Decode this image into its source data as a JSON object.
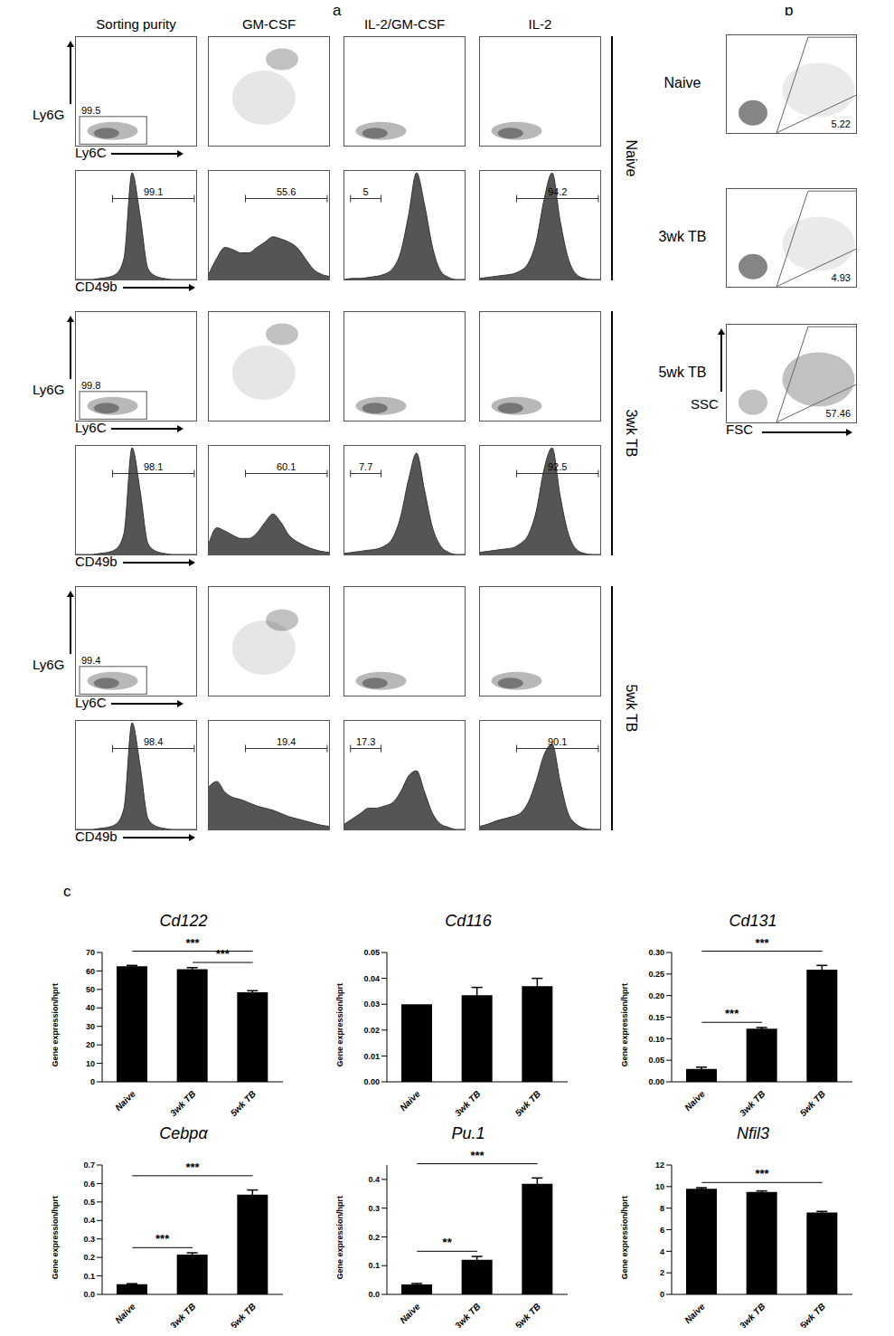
{
  "panel_labels": [
    "a",
    "b",
    "c"
  ],
  "a": {
    "columns": [
      "Sorting purity",
      "GM-CSF",
      "IL-2/GM-CSF",
      "IL-2"
    ],
    "dot_x_label": "Ly6C",
    "dot_y_label": "Ly6G",
    "hist_x_label": "CD49b",
    "hist_ylim": [
      0,
      100
    ],
    "rows": [
      {
        "group": "Naive",
        "purity": 99.5,
        "histograms": [
          {
            "gate": 99.1,
            "side": "right",
            "counts": [
              0,
              0,
              0,
              1,
              2,
              5,
              20,
              100,
              60,
              10,
              3,
              1,
              0,
              0,
              0,
              0
            ]
          },
          {
            "gate": 55.6,
            "side": "right",
            "counts": [
              5,
              20,
              30,
              28,
              25,
              25,
              30,
              35,
              40,
              38,
              35,
              30,
              20,
              10,
              5,
              3
            ]
          },
          {
            "gate": 5,
            "side": "left",
            "counts": [
              0,
              1,
              1,
              2,
              3,
              5,
              10,
              25,
              60,
              100,
              70,
              30,
              8,
              2,
              0,
              0
            ]
          },
          {
            "gate": 94.2,
            "side": "right",
            "counts": [
              1,
              2,
              3,
              4,
              5,
              8,
              15,
              35,
              75,
              100,
              55,
              20,
              5,
              1,
              0,
              0
            ]
          }
        ]
      },
      {
        "group": "3wk TB",
        "purity": 99.8,
        "histograms": [
          {
            "gate": 98.1,
            "side": "right",
            "counts": [
              0,
              0,
              0,
              1,
              2,
              5,
              20,
              100,
              60,
              10,
              3,
              1,
              0,
              0,
              0,
              0
            ]
          },
          {
            "gate": 60.1,
            "side": "right",
            "counts": [
              10,
              25,
              22,
              18,
              15,
              15,
              20,
              30,
              38,
              30,
              18,
              12,
              8,
              5,
              3,
              2
            ]
          },
          {
            "gate": 7.7,
            "side": "left",
            "counts": [
              1,
              2,
              3,
              4,
              5,
              8,
              15,
              35,
              70,
              95,
              60,
              25,
              8,
              2,
              0,
              0
            ]
          },
          {
            "gate": 92.5,
            "side": "right",
            "counts": [
              2,
              3,
              4,
              5,
              6,
              10,
              18,
              40,
              80,
              100,
              55,
              20,
              5,
              1,
              0,
              0
            ]
          }
        ]
      },
      {
        "group": "5wk TB",
        "purity": 99.4,
        "histograms": [
          {
            "gate": 98.4,
            "side": "right",
            "counts": [
              0,
              0,
              0,
              1,
              2,
              5,
              20,
              100,
              60,
              10,
              3,
              1,
              0,
              0,
              0,
              0
            ]
          },
          {
            "gate": 19.4,
            "side": "right",
            "counts": [
              40,
              45,
              35,
              30,
              28,
              25,
              22,
              20,
              18,
              15,
              12,
              10,
              8,
              6,
              4,
              3
            ]
          },
          {
            "gate": 17.3,
            "side": "left",
            "counts": [
              5,
              10,
              15,
              20,
              20,
              22,
              25,
              35,
              50,
              55,
              35,
              15,
              5,
              2,
              0,
              0
            ]
          },
          {
            "gate": 90.1,
            "side": "right",
            "counts": [
              3,
              5,
              8,
              10,
              12,
              15,
              25,
              45,
              70,
              80,
              45,
              15,
              5,
              1,
              0,
              0
            ]
          }
        ]
      }
    ]
  },
  "b": {
    "groups": [
      "Naive",
      "3wk TB",
      "5wk TB"
    ],
    "gates": [
      5.22,
      4.93,
      57.46
    ],
    "x_label": "FSC",
    "y_label": "SSC"
  },
  "chart_data": [
    {
      "type": "bar",
      "title": "Cd122",
      "ylabel": "Gene expression/hprt",
      "categories": [
        "Naive",
        "3wk TB",
        "5wk TB"
      ],
      "values": [
        62.5,
        61,
        48.5
      ],
      "errors": [
        0.5,
        0.8,
        0.8
      ],
      "color": "#000000",
      "ylim": [
        0,
        70
      ],
      "yticks": [
        0,
        10,
        20,
        30,
        40,
        50,
        60,
        70
      ],
      "significance": [
        {
          "from": 1,
          "to": 2,
          "label": "***"
        },
        {
          "from": 0,
          "to": 2,
          "label": "***"
        }
      ]
    },
    {
      "type": "bar",
      "title": "Cd116",
      "ylabel": "Gene expression/hprt",
      "categories": [
        "Naive",
        "3wk TB",
        "5wk TB"
      ],
      "values": [
        0.03,
        0.0335,
        0.037
      ],
      "errors": [
        0,
        0.003,
        0.003
      ],
      "color": "#000000",
      "ylim": [
        0,
        0.05
      ],
      "yticks": [
        {
          "value": 0,
          "label": "0.00"
        },
        {
          "value": 0.01,
          "label": "0.01"
        },
        {
          "value": 0.02,
          "label": "0.02"
        },
        {
          "value": 0.03,
          "label": "0.03"
        },
        {
          "value": 0.04,
          "label": "0.04"
        },
        {
          "value": 0.05,
          "label": "0.05"
        }
      ],
      "significance": []
    },
    {
      "type": "bar",
      "title": "Cd131",
      "ylabel": "Gene expression/hprt",
      "categories": [
        "Naive",
        "3wk TB",
        "5wk TB"
      ],
      "values": [
        0.03,
        0.123,
        0.26
      ],
      "errors": [
        0.004,
        0.003,
        0.01
      ],
      "color": "#000000",
      "ylim": [
        0,
        0.3
      ],
      "yticks": [
        {
          "value": 0,
          "label": "0.00"
        },
        {
          "value": 0.05,
          "label": "0.05"
        },
        {
          "value": 0.1,
          "label": "0.10"
        },
        {
          "value": 0.15,
          "label": "0.15"
        },
        {
          "value": 0.2,
          "label": "0.20"
        },
        {
          "value": 0.25,
          "label": "0.25"
        },
        {
          "value": 0.3,
          "label": "0.30"
        }
      ],
      "significance": [
        {
          "from": 0,
          "to": 1,
          "label": "***"
        },
        {
          "from": 0,
          "to": 2,
          "label": "***"
        }
      ]
    },
    {
      "type": "bar",
      "title": "Cebpα",
      "ylabel": "Gene expression/hprt",
      "categories": [
        "Naive",
        "3wk TB",
        "5wk TB"
      ],
      "values": [
        0.055,
        0.215,
        0.54
      ],
      "errors": [
        0.003,
        0.01,
        0.025
      ],
      "color": "#000000",
      "ylim": [
        0,
        0.7
      ],
      "yticks": [
        {
          "value": 0,
          "label": "0.0"
        },
        {
          "value": 0.1,
          "label": "0.1"
        },
        {
          "value": 0.2,
          "label": "0.2"
        },
        {
          "value": 0.3,
          "label": "0.3"
        },
        {
          "value": 0.4,
          "label": "0.4"
        },
        {
          "value": 0.5,
          "label": "0.5"
        },
        {
          "value": 0.6,
          "label": "0.6"
        },
        {
          "value": 0.7,
          "label": "0.7"
        }
      ],
      "significance": [
        {
          "from": 0,
          "to": 1,
          "label": "***"
        },
        {
          "from": 0,
          "to": 2,
          "label": "***"
        }
      ]
    },
    {
      "type": "bar",
      "title": "Pu.1",
      "ylabel": "Gene expression/hprt",
      "categories": [
        "Naive",
        "3wk TB",
        "5wk TB"
      ],
      "values": [
        0.035,
        0.12,
        0.385
      ],
      "errors": [
        0.003,
        0.012,
        0.02
      ],
      "color": "#000000",
      "ylim": [
        0,
        0.45
      ],
      "yticks": [
        {
          "value": 0,
          "label": "0.0"
        },
        {
          "value": 0.1,
          "label": "0.1"
        },
        {
          "value": 0.2,
          "label": "0.2"
        },
        {
          "value": 0.3,
          "label": "0.3"
        },
        {
          "value": 0.4,
          "label": "0.4"
        }
      ],
      "significance": [
        {
          "from": 0,
          "to": 1,
          "label": "**"
        },
        {
          "from": 0,
          "to": 2,
          "label": "***"
        }
      ]
    },
    {
      "type": "bar",
      "title": "Nfil3",
      "ylabel": "Gene expression/hprt",
      "categories": [
        "Naive",
        "3wk TB",
        "5wk TB"
      ],
      "values": [
        9.8,
        9.5,
        7.6
      ],
      "errors": [
        0.1,
        0.1,
        0.1
      ],
      "color": "#000000",
      "ylim": [
        0,
        12
      ],
      "yticks": [
        0,
        2,
        4,
        6,
        8,
        10,
        12
      ],
      "significance": [
        {
          "from": 0,
          "to": 2,
          "label": "***"
        }
      ]
    }
  ]
}
